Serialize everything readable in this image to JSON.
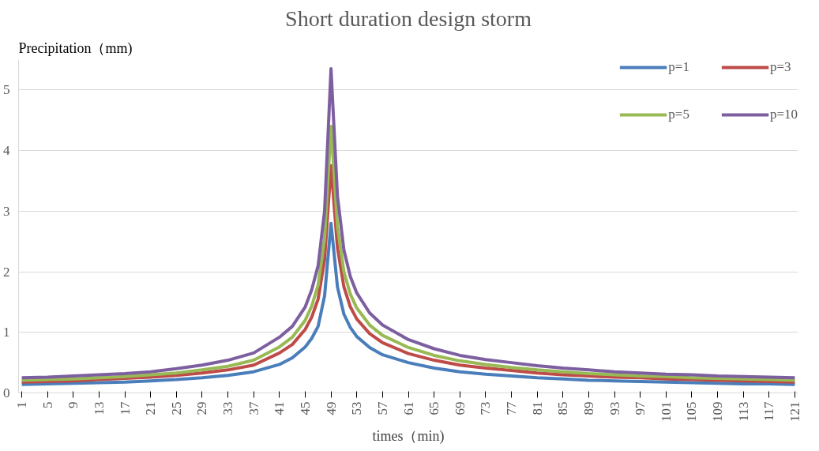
{
  "chart_data": {
    "type": "line",
    "title": "Short duration design storm",
    "xlabel": "times（min)",
    "ylabel": "Precipitation（mm)",
    "x": [
      1,
      5,
      9,
      13,
      17,
      21,
      25,
      29,
      33,
      37,
      41,
      43,
      45,
      46,
      47,
      48,
      49,
      50,
      51,
      52,
      53,
      55,
      57,
      61,
      65,
      69,
      73,
      77,
      81,
      85,
      89,
      93,
      97,
      101,
      105,
      109,
      113,
      117,
      121
    ],
    "xlim": [
      0.5,
      121.5
    ],
    "xticks": [
      1,
      5,
      9,
      13,
      17,
      21,
      25,
      29,
      33,
      37,
      41,
      45,
      49,
      53,
      57,
      61,
      65,
      69,
      73,
      77,
      81,
      85,
      89,
      93,
      97,
      101,
      105,
      109,
      113,
      117,
      121
    ],
    "ylim": [
      0,
      5.5
    ],
    "yticks": [
      0,
      1,
      2,
      3,
      4,
      5
    ],
    "grid": "y",
    "legend": "top right",
    "line_style": "solid",
    "marker": "none",
    "series": [
      {
        "name": "p=1",
        "color": "#4a7ebb",
        "values": [
          0.14,
          0.15,
          0.16,
          0.17,
          0.18,
          0.2,
          0.22,
          0.25,
          0.29,
          0.35,
          0.47,
          0.58,
          0.76,
          0.9,
          1.1,
          1.6,
          2.8,
          1.75,
          1.3,
          1.08,
          0.93,
          0.75,
          0.63,
          0.5,
          0.41,
          0.35,
          0.31,
          0.28,
          0.25,
          0.23,
          0.21,
          0.2,
          0.19,
          0.18,
          0.17,
          0.16,
          0.15,
          0.15,
          0.14
        ]
      },
      {
        "name": "p=3",
        "color": "#be4b48",
        "values": [
          0.18,
          0.19,
          0.2,
          0.22,
          0.24,
          0.26,
          0.29,
          0.33,
          0.38,
          0.46,
          0.66,
          0.8,
          1.05,
          1.25,
          1.55,
          2.2,
          3.75,
          2.4,
          1.75,
          1.42,
          1.22,
          0.98,
          0.83,
          0.65,
          0.54,
          0.46,
          0.41,
          0.37,
          0.33,
          0.3,
          0.28,
          0.26,
          0.25,
          0.23,
          0.22,
          0.21,
          0.2,
          0.19,
          0.18
        ]
      },
      {
        "name": "p=5",
        "color": "#98b954",
        "values": [
          0.21,
          0.22,
          0.23,
          0.25,
          0.27,
          0.3,
          0.33,
          0.38,
          0.44,
          0.54,
          0.76,
          0.92,
          1.2,
          1.43,
          1.78,
          2.55,
          4.4,
          2.75,
          2.0,
          1.63,
          1.4,
          1.12,
          0.95,
          0.75,
          0.62,
          0.53,
          0.47,
          0.42,
          0.38,
          0.35,
          0.32,
          0.3,
          0.28,
          0.27,
          0.25,
          0.24,
          0.23,
          0.22,
          0.21
        ]
      },
      {
        "name": "p=10",
        "color": "#7d5fa0",
        "values": [
          0.25,
          0.26,
          0.28,
          0.3,
          0.32,
          0.35,
          0.4,
          0.46,
          0.54,
          0.66,
          0.92,
          1.1,
          1.42,
          1.7,
          2.1,
          3.0,
          5.35,
          3.25,
          2.36,
          1.92,
          1.65,
          1.32,
          1.12,
          0.88,
          0.73,
          0.62,
          0.55,
          0.5,
          0.45,
          0.41,
          0.38,
          0.35,
          0.33,
          0.31,
          0.3,
          0.28,
          0.27,
          0.26,
          0.25
        ]
      }
    ]
  }
}
